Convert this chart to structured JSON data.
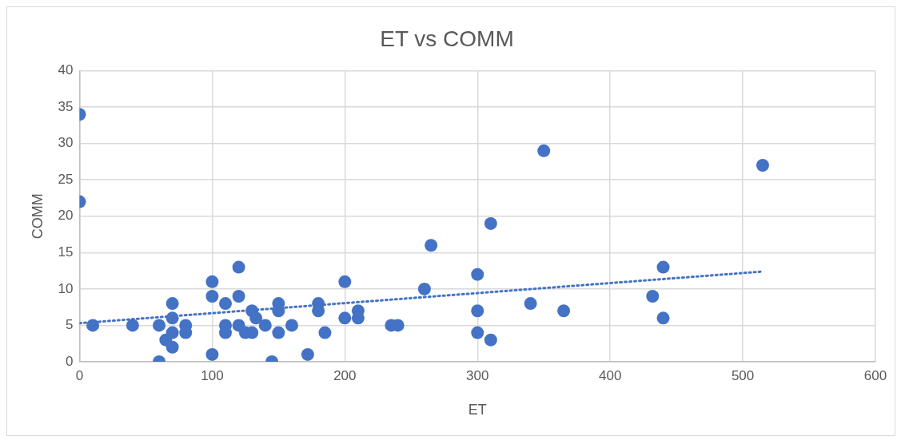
{
  "chart_data": {
    "type": "scatter",
    "title": "ET vs COMM",
    "xlabel": "ET",
    "ylabel": "COMM",
    "xlim": [
      0,
      600
    ],
    "xticks": [
      0,
      100,
      200,
      300,
      400,
      500,
      600
    ],
    "ylim": [
      0,
      40
    ],
    "yticks": [
      0,
      5,
      10,
      15,
      20,
      25,
      30,
      35,
      40
    ],
    "grid": true,
    "legend": false,
    "marker": "circle",
    "series": [
      {
        "color": "#4472c4",
        "x": [
          0,
          0,
          10,
          40,
          60,
          60,
          65,
          70,
          70,
          70,
          70,
          80,
          80,
          100,
          100,
          100,
          110,
          110,
          110,
          120,
          120,
          120,
          125,
          130,
          130,
          133,
          140,
          150,
          150,
          150,
          145,
          160,
          172,
          180,
          180,
          185,
          200,
          200,
          210,
          210,
          235,
          240,
          260,
          265,
          300,
          300,
          300,
          310,
          310,
          350,
          340,
          365,
          432,
          440,
          440,
          515
        ],
        "values": [
          34,
          22,
          5,
          5,
          5,
          0,
          3,
          8,
          6,
          4,
          2,
          5,
          4,
          11,
          9,
          1,
          8,
          5,
          4,
          13,
          9,
          5,
          4,
          7,
          4,
          6,
          5,
          8,
          7,
          4,
          0,
          5,
          1,
          8,
          7,
          4,
          11,
          6,
          7,
          6,
          5,
          5,
          10,
          16,
          12,
          7,
          4,
          19,
          3,
          29,
          8,
          7,
          9,
          13,
          6,
          27
        ]
      },
      {
        "type": "line",
        "color": "#4472c4",
        "line_style": "dotted",
        "marker": "none",
        "x": [
          0,
          515
        ],
        "values": [
          5.3,
          12.4
        ]
      }
    ]
  }
}
